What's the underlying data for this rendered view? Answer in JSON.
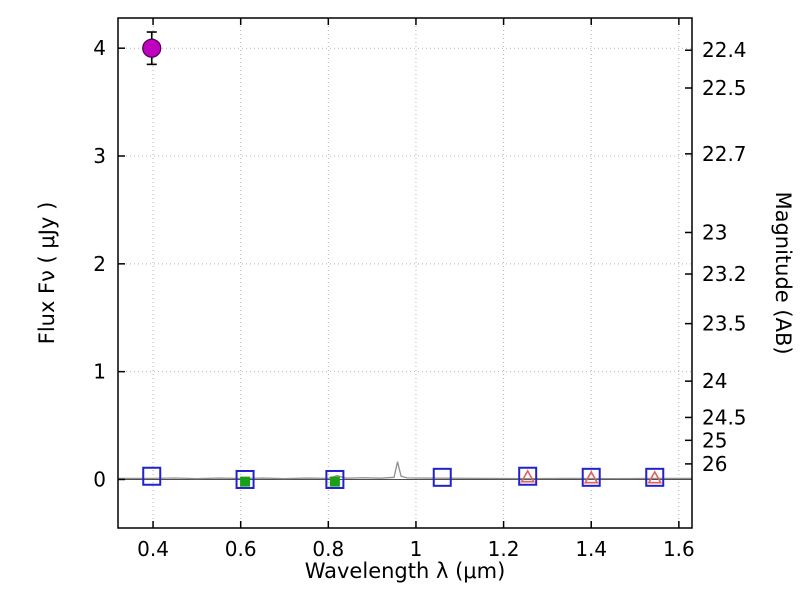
{
  "figure": {
    "background": "#ffffff",
    "axes_color": "#000000",
    "grid_color": "#b3b3b3"
  },
  "chart_data": {
    "type": "scatter",
    "title": "",
    "xlabel": "Wavelength  λ (μm)",
    "ylabel_left": "Flux  Fν ( μJy )",
    "ylabel_right": "Magnitude (AB)",
    "xlim": [
      0.32,
      1.63
    ],
    "ylim": [
      -0.45,
      4.28
    ],
    "grid": true,
    "legend": "none",
    "mag_zeropoint": 23.9,
    "x_ticks": [
      {
        "v": 0.4,
        "label": "0.4"
      },
      {
        "v": 0.6,
        "label": "0.6"
      },
      {
        "v": 0.8,
        "label": "0.8"
      },
      {
        "v": 1.0,
        "label": "1"
      },
      {
        "v": 1.2,
        "label": "1.2"
      },
      {
        "v": 1.4,
        "label": "1.4"
      },
      {
        "v": 1.6,
        "label": "1.6"
      }
    ],
    "y_ticks_left": [
      {
        "v": 0,
        "label": "0"
      },
      {
        "v": 1,
        "label": "1"
      },
      {
        "v": 2,
        "label": "2"
      },
      {
        "v": 3,
        "label": "3"
      },
      {
        "v": 4,
        "label": "4"
      }
    ],
    "y_ticks_right": [
      {
        "mag": 22.4,
        "label": "22.4"
      },
      {
        "mag": 22.5,
        "label": "22.5"
      },
      {
        "mag": 22.7,
        "label": "22.7"
      },
      {
        "mag": 23.0,
        "label": "23"
      },
      {
        "mag": 23.2,
        "label": "23.2"
      },
      {
        "mag": 23.5,
        "label": "23.5"
      },
      {
        "mag": 24.0,
        "label": "24"
      },
      {
        "mag": 24.5,
        "label": "24.5"
      },
      {
        "mag": 25.0,
        "label": "25"
      },
      {
        "mag": 26.0,
        "label": "26"
      }
    ],
    "series": [
      {
        "name": "detection-circle",
        "marker": "circle",
        "fill": "#bf00bf",
        "edge": "#4b004b",
        "size": 9,
        "error_color": "#000000",
        "points": [
          {
            "x": 0.397,
            "y": 4.0,
            "yerr": 0.15
          }
        ]
      },
      {
        "name": "broadband-photometry-squares",
        "marker": "open-square",
        "color": "#2222cc",
        "size": 17,
        "points": [
          {
            "x": 0.397,
            "y": 0.03
          },
          {
            "x": 0.61,
            "y": 0.0
          },
          {
            "x": 0.815,
            "y": 0.0
          },
          {
            "x": 1.06,
            "y": 0.02
          },
          {
            "x": 1.255,
            "y": 0.03
          },
          {
            "x": 1.4,
            "y": 0.02
          },
          {
            "x": 1.545,
            "y": 0.02
          }
        ]
      },
      {
        "name": "model-photometry-green-squares",
        "marker": "filled-square",
        "color": "#18a018",
        "size": 9,
        "points": [
          {
            "x": 0.61,
            "y": -0.02
          },
          {
            "x": 0.815,
            "y": -0.02
          }
        ]
      },
      {
        "name": "model-photometry-red-triangles",
        "marker": "open-triangle",
        "color": "#e06060",
        "size": 12,
        "points": [
          {
            "x": 1.255,
            "y": 0.03
          },
          {
            "x": 1.4,
            "y": 0.02
          },
          {
            "x": 1.545,
            "y": 0.02
          }
        ]
      }
    ],
    "spectrum": {
      "name": "observed-spectrum",
      "color": "#909090",
      "width": 1.3,
      "points": [
        [
          0.32,
          0.01
        ],
        [
          0.4,
          0.01
        ],
        [
          0.45,
          0.014
        ],
        [
          0.5,
          0.008
        ],
        [
          0.55,
          0.013
        ],
        [
          0.6,
          0.009
        ],
        [
          0.65,
          0.013
        ],
        [
          0.7,
          0.008
        ],
        [
          0.75,
          0.013
        ],
        [
          0.8,
          0.01
        ],
        [
          0.82,
          0.035
        ],
        [
          0.84,
          0.012
        ],
        [
          0.88,
          0.016
        ],
        [
          0.92,
          0.012
        ],
        [
          0.95,
          0.02
        ],
        [
          0.958,
          0.165
        ],
        [
          0.966,
          0.03
        ],
        [
          0.98,
          0.015
        ],
        [
          1.05,
          0.012
        ],
        [
          1.15,
          0.01
        ],
        [
          1.25,
          0.008
        ],
        [
          1.35,
          0.01
        ],
        [
          1.45,
          0.008
        ],
        [
          1.55,
          0.01
        ],
        [
          1.63,
          0.01
        ]
      ]
    },
    "baseline": {
      "name": "zero-flux-model-line",
      "color": "#505050",
      "width": 1,
      "y": 0.0
    }
  }
}
